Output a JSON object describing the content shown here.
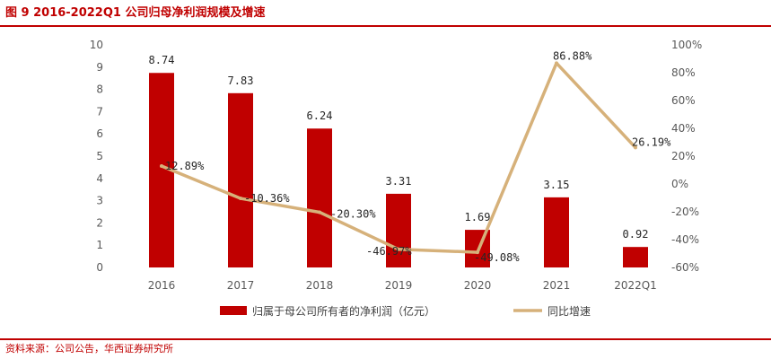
{
  "figure": {
    "title": "图 9 2016-2022Q1 公司归母净利润规模及增速",
    "source": "资料来源：公司公告，华西证券研究所"
  },
  "chart_data": {
    "type": "bar",
    "categories": [
      "2016",
      "2017",
      "2018",
      "2019",
      "2020",
      "2021",
      "2022Q1"
    ],
    "series": [
      {
        "name": "归属于母公司所有者的净利润（亿元）",
        "type": "bar",
        "axis": "left",
        "values": [
          8.74,
          7.83,
          6.24,
          3.31,
          1.69,
          3.15,
          0.92
        ],
        "labels": [
          "8.74",
          "7.83",
          "6.24",
          "3.31",
          "1.69",
          "3.15",
          "0.92"
        ]
      },
      {
        "name": "同比增速",
        "type": "line",
        "axis": "right",
        "values": [
          12.89,
          -10.36,
          -20.3,
          -46.97,
          -49.08,
          86.88,
          26.19
        ],
        "labels": [
          "12.89%",
          "-10.36%",
          "-20.30%",
          "-46.97%",
          "-49.08%",
          "86.88%",
          "26.19%"
        ]
      }
    ],
    "y_left": {
      "ylim": [
        0,
        10
      ],
      "ticks": [
        "0",
        "1",
        "2",
        "3",
        "4",
        "5",
        "6",
        "7",
        "8",
        "9",
        "10"
      ]
    },
    "y_right": {
      "ylim": [
        -60,
        100
      ],
      "ticks": [
        "-60%",
        "-40%",
        "-20%",
        "0%",
        "20%",
        "40%",
        "60%",
        "80%",
        "100%"
      ]
    },
    "grid": false,
    "legend": "bottom",
    "colors": {
      "bar": "#c00000",
      "line": "#d6b17a",
      "accent": "#c00000"
    }
  }
}
